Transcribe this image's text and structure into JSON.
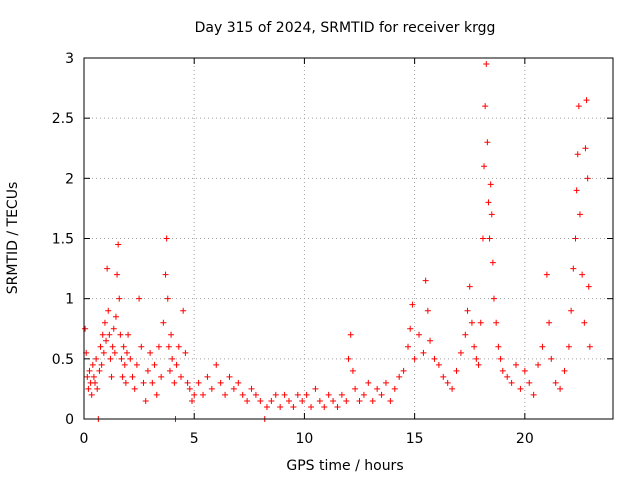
{
  "chart_data": {
    "type": "scatter",
    "title": "Day 315 of 2024, SRMTID for receiver krgg",
    "xlabel": "GPS time / hours",
    "ylabel": "SRMTID / TECUs",
    "xlim": [
      0,
      24
    ],
    "ylim": [
      0,
      3
    ],
    "xticks": [
      0,
      5,
      10,
      15,
      20
    ],
    "yticks": [
      0,
      0.5,
      1,
      1.5,
      2,
      2.5,
      3
    ],
    "xtick_labels": [
      "0",
      "5",
      "10",
      "15",
      "20"
    ],
    "ytick_labels": [
      "0",
      "0.5",
      "1",
      "1.5",
      "2",
      "2.5",
      "3"
    ],
    "grid": true,
    "marker": "+",
    "color": "#ff0000",
    "series": [
      {
        "name": "SRMTID",
        "points": [
          [
            0.05,
            0.75
          ],
          [
            0.1,
            0.55
          ],
          [
            0.15,
            0.35
          ],
          [
            0.2,
            0.25
          ],
          [
            0.25,
            0.4
          ],
          [
            0.3,
            0.3
          ],
          [
            0.35,
            0.2
          ],
          [
            0.4,
            0.45
          ],
          [
            0.45,
            0.35
          ],
          [
            0.5,
            0.3
          ],
          [
            0.55,
            0.5
          ],
          [
            0.6,
            0.25
          ],
          [
            0.65,
            0.0
          ],
          [
            0.7,
            0.4
          ],
          [
            0.75,
            0.6
          ],
          [
            0.8,
            0.45
          ],
          [
            0.85,
            0.7
          ],
          [
            0.9,
            0.55
          ],
          [
            0.95,
            0.8
          ],
          [
            1.0,
            0.65
          ],
          [
            1.05,
            1.25
          ],
          [
            1.1,
            0.9
          ],
          [
            1.15,
            0.7
          ],
          [
            1.2,
            0.5
          ],
          [
            1.25,
            0.35
          ],
          [
            1.3,
            0.6
          ],
          [
            1.35,
            0.75
          ],
          [
            1.4,
            0.55
          ],
          [
            1.45,
            0.85
          ],
          [
            1.5,
            1.2
          ],
          [
            1.55,
            1.45
          ],
          [
            1.6,
            1.0
          ],
          [
            1.65,
            0.7
          ],
          [
            1.7,
            0.5
          ],
          [
            1.75,
            0.35
          ],
          [
            1.8,
            0.6
          ],
          [
            1.85,
            0.45
          ],
          [
            1.9,
            0.3
          ],
          [
            1.95,
            0.55
          ],
          [
            2.0,
            0.7
          ],
          [
            2.1,
            0.5
          ],
          [
            2.2,
            0.35
          ],
          [
            2.3,
            0.25
          ],
          [
            2.4,
            0.45
          ],
          [
            2.5,
            1.0
          ],
          [
            2.6,
            0.6
          ],
          [
            2.7,
            0.3
          ],
          [
            2.8,
            0.15
          ],
          [
            2.9,
            0.4
          ],
          [
            3.0,
            0.55
          ],
          [
            3.1,
            0.3
          ],
          [
            3.2,
            0.45
          ],
          [
            3.3,
            0.2
          ],
          [
            3.4,
            0.6
          ],
          [
            3.5,
            0.35
          ],
          [
            3.6,
            0.8
          ],
          [
            3.7,
            1.2
          ],
          [
            3.75,
            1.5
          ],
          [
            3.8,
            1.0
          ],
          [
            3.85,
            0.6
          ],
          [
            3.9,
            0.4
          ],
          [
            3.95,
            0.7
          ],
          [
            4.0,
            0.5
          ],
          [
            4.1,
            0.3
          ],
          [
            4.15,
            0.0
          ],
          [
            4.2,
            0.45
          ],
          [
            4.3,
            0.6
          ],
          [
            4.4,
            0.35
          ],
          [
            4.5,
            0.9
          ],
          [
            4.6,
            0.55
          ],
          [
            4.7,
            0.3
          ],
          [
            4.8,
            0.25
          ],
          [
            4.9,
            0.15
          ],
          [
            5.0,
            0.2
          ],
          [
            5.2,
            0.3
          ],
          [
            5.4,
            0.2
          ],
          [
            5.6,
            0.35
          ],
          [
            5.8,
            0.25
          ],
          [
            6.0,
            0.45
          ],
          [
            6.2,
            0.3
          ],
          [
            6.4,
            0.2
          ],
          [
            6.6,
            0.35
          ],
          [
            6.8,
            0.25
          ],
          [
            7.0,
            0.3
          ],
          [
            7.2,
            0.2
          ],
          [
            7.4,
            0.15
          ],
          [
            7.6,
            0.25
          ],
          [
            7.8,
            0.2
          ],
          [
            8.0,
            0.15
          ],
          [
            8.2,
            0.0
          ],
          [
            8.3,
            0.1
          ],
          [
            8.5,
            0.15
          ],
          [
            8.7,
            0.2
          ],
          [
            8.9,
            0.1
          ],
          [
            9.1,
            0.2
          ],
          [
            9.3,
            0.15
          ],
          [
            9.5,
            0.1
          ],
          [
            9.7,
            0.2
          ],
          [
            9.9,
            0.15
          ],
          [
            10.1,
            0.2
          ],
          [
            10.3,
            0.1
          ],
          [
            10.5,
            0.25
          ],
          [
            10.7,
            0.15
          ],
          [
            10.9,
            0.1
          ],
          [
            11.1,
            0.2
          ],
          [
            11.3,
            0.15
          ],
          [
            11.5,
            0.1
          ],
          [
            11.7,
            0.2
          ],
          [
            11.9,
            0.15
          ],
          [
            12.0,
            0.5
          ],
          [
            12.1,
            0.7
          ],
          [
            12.2,
            0.4
          ],
          [
            12.3,
            0.25
          ],
          [
            12.5,
            0.15
          ],
          [
            12.7,
            0.2
          ],
          [
            12.9,
            0.3
          ],
          [
            13.1,
            0.15
          ],
          [
            13.3,
            0.25
          ],
          [
            13.5,
            0.2
          ],
          [
            13.7,
            0.3
          ],
          [
            13.9,
            0.15
          ],
          [
            14.1,
            0.25
          ],
          [
            14.3,
            0.35
          ],
          [
            14.5,
            0.4
          ],
          [
            14.7,
            0.6
          ],
          [
            14.8,
            0.75
          ],
          [
            14.9,
            0.95
          ],
          [
            15.0,
            0.5
          ],
          [
            15.2,
            0.7
          ],
          [
            15.4,
            0.55
          ],
          [
            15.5,
            1.15
          ],
          [
            15.6,
            0.9
          ],
          [
            15.7,
            0.65
          ],
          [
            15.9,
            0.5
          ],
          [
            16.1,
            0.45
          ],
          [
            16.3,
            0.35
          ],
          [
            16.5,
            0.3
          ],
          [
            16.7,
            0.25
          ],
          [
            16.9,
            0.4
          ],
          [
            17.1,
            0.55
          ],
          [
            17.3,
            0.7
          ],
          [
            17.4,
            0.9
          ],
          [
            17.5,
            1.1
          ],
          [
            17.6,
            0.8
          ],
          [
            17.7,
            0.6
          ],
          [
            17.8,
            0.5
          ],
          [
            17.9,
            0.45
          ],
          [
            18.0,
            0.8
          ],
          [
            18.1,
            1.5
          ],
          [
            18.15,
            2.1
          ],
          [
            18.2,
            2.6
          ],
          [
            18.25,
            2.95
          ],
          [
            18.3,
            2.3
          ],
          [
            18.35,
            1.8
          ],
          [
            18.4,
            1.5
          ],
          [
            18.45,
            1.95
          ],
          [
            18.5,
            1.7
          ],
          [
            18.55,
            1.3
          ],
          [
            18.6,
            1.0
          ],
          [
            18.7,
            0.8
          ],
          [
            18.8,
            0.6
          ],
          [
            18.9,
            0.5
          ],
          [
            19.0,
            0.4
          ],
          [
            19.2,
            0.35
          ],
          [
            19.4,
            0.3
          ],
          [
            19.6,
            0.45
          ],
          [
            19.8,
            0.25
          ],
          [
            20.0,
            0.4
          ],
          [
            20.2,
            0.3
          ],
          [
            20.4,
            0.2
          ],
          [
            20.6,
            0.45
          ],
          [
            20.8,
            0.6
          ],
          [
            21.0,
            1.2
          ],
          [
            21.1,
            0.8
          ],
          [
            21.2,
            0.5
          ],
          [
            21.4,
            0.3
          ],
          [
            21.6,
            0.25
          ],
          [
            21.8,
            0.4
          ],
          [
            22.0,
            0.6
          ],
          [
            22.1,
            0.9
          ],
          [
            22.2,
            1.25
          ],
          [
            22.3,
            1.5
          ],
          [
            22.35,
            1.9
          ],
          [
            22.4,
            2.2
          ],
          [
            22.45,
            2.6
          ],
          [
            22.5,
            1.7
          ],
          [
            22.6,
            1.2
          ],
          [
            22.7,
            0.8
          ],
          [
            22.75,
            2.25
          ],
          [
            22.8,
            2.65
          ],
          [
            22.85,
            2.0
          ],
          [
            22.9,
            1.1
          ],
          [
            22.95,
            0.6
          ]
        ]
      }
    ]
  }
}
